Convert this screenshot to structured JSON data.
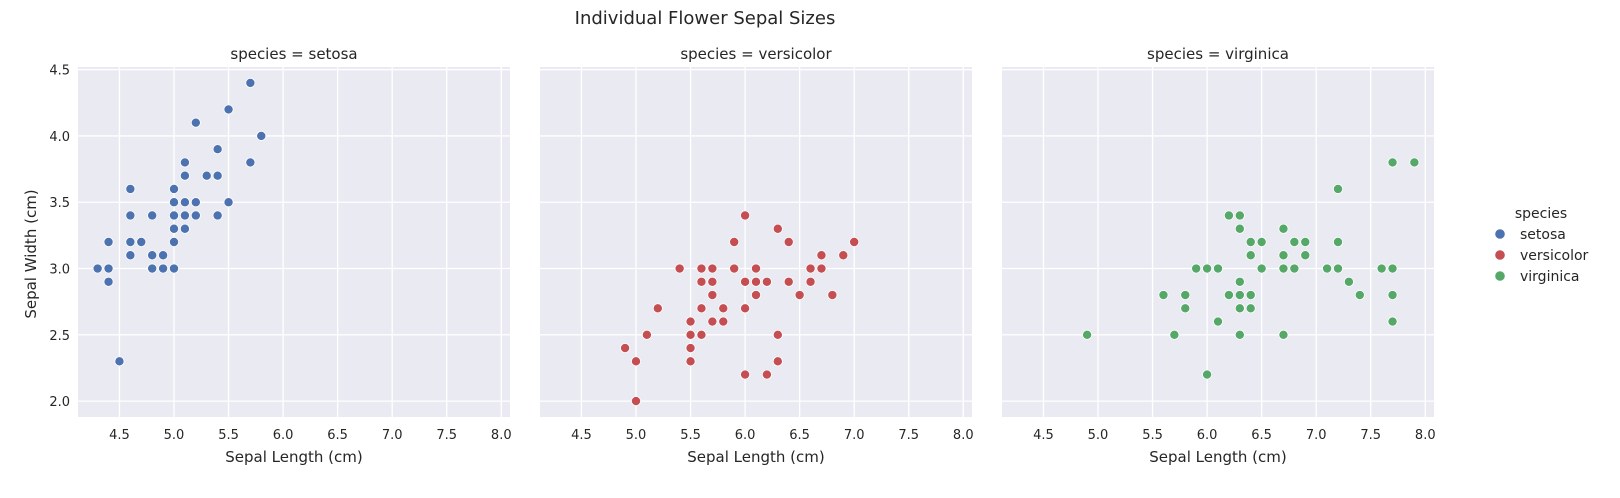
{
  "chart_data": {
    "type": "scatter",
    "title": "Individual Flower Sepal Sizes",
    "xlabel": "Sepal Length (cm)",
    "ylabel": "Sepal Width (cm)",
    "xlim": [
      4.12,
      8.08
    ],
    "ylim": [
      1.88,
      4.52
    ],
    "xticks": [
      4.5,
      5.0,
      5.5,
      6.0,
      6.5,
      7.0,
      7.5,
      8.0
    ],
    "yticks": [
      2.0,
      2.5,
      3.0,
      3.5,
      4.0,
      4.5
    ],
    "x_tick_labels": [
      "4.5",
      "5.0",
      "5.5",
      "6.0",
      "6.5",
      "7.0",
      "7.5",
      "8.0"
    ],
    "y_tick_labels": [
      "2.0",
      "2.5",
      "3.0",
      "3.5",
      "4.0",
      "4.5"
    ],
    "grid": true,
    "legend": {
      "title": "species",
      "placement": "right"
    },
    "panels": [
      {
        "title": "species = setosa",
        "name": "setosa",
        "color": "#4c72b0",
        "points": [
          [
            4.3,
            3.0
          ],
          [
            4.4,
            2.9
          ],
          [
            4.4,
            3.0
          ],
          [
            4.4,
            3.2
          ],
          [
            4.5,
            2.3
          ],
          [
            4.6,
            3.1
          ],
          [
            4.6,
            3.2
          ],
          [
            4.6,
            3.4
          ],
          [
            4.6,
            3.6
          ],
          [
            4.7,
            3.2
          ],
          [
            4.8,
            3.0
          ],
          [
            4.8,
            3.1
          ],
          [
            4.8,
            3.4
          ],
          [
            4.9,
            3.0
          ],
          [
            4.9,
            3.1
          ],
          [
            5.0,
            3.0
          ],
          [
            5.0,
            3.2
          ],
          [
            5.0,
            3.3
          ],
          [
            5.0,
            3.4
          ],
          [
            5.0,
            3.5
          ],
          [
            5.0,
            3.6
          ],
          [
            5.1,
            3.3
          ],
          [
            5.1,
            3.4
          ],
          [
            5.1,
            3.5
          ],
          [
            5.1,
            3.7
          ],
          [
            5.1,
            3.8
          ],
          [
            5.2,
            3.4
          ],
          [
            5.2,
            3.5
          ],
          [
            5.2,
            4.1
          ],
          [
            5.3,
            3.7
          ],
          [
            5.4,
            3.4
          ],
          [
            5.4,
            3.7
          ],
          [
            5.4,
            3.9
          ],
          [
            5.5,
            3.5
          ],
          [
            5.5,
            4.2
          ],
          [
            5.7,
            3.8
          ],
          [
            5.7,
            4.4
          ],
          [
            5.8,
            4.0
          ]
        ]
      },
      {
        "title": "species = versicolor",
        "name": "versicolor",
        "color": "#c44e52",
        "points": [
          [
            4.9,
            2.4
          ],
          [
            5.0,
            2.0
          ],
          [
            5.0,
            2.3
          ],
          [
            5.1,
            2.5
          ],
          [
            5.2,
            2.7
          ],
          [
            5.4,
            3.0
          ],
          [
            5.5,
            2.3
          ],
          [
            5.5,
            2.4
          ],
          [
            5.5,
            2.5
          ],
          [
            5.5,
            2.6
          ],
          [
            5.6,
            2.5
          ],
          [
            5.6,
            2.7
          ],
          [
            5.6,
            2.9
          ],
          [
            5.6,
            3.0
          ],
          [
            5.7,
            2.6
          ],
          [
            5.7,
            2.8
          ],
          [
            5.7,
            2.9
          ],
          [
            5.7,
            3.0
          ],
          [
            5.8,
            2.6
          ],
          [
            5.8,
            2.7
          ],
          [
            5.9,
            3.0
          ],
          [
            5.9,
            3.2
          ],
          [
            6.0,
            2.2
          ],
          [
            6.0,
            2.7
          ],
          [
            6.0,
            2.9
          ],
          [
            6.0,
            3.4
          ],
          [
            6.1,
            2.8
          ],
          [
            6.1,
            2.9
          ],
          [
            6.1,
            3.0
          ],
          [
            6.2,
            2.2
          ],
          [
            6.2,
            2.9
          ],
          [
            6.3,
            2.3
          ],
          [
            6.3,
            2.5
          ],
          [
            6.3,
            3.3
          ],
          [
            6.4,
            2.9
          ],
          [
            6.4,
            3.2
          ],
          [
            6.5,
            2.8
          ],
          [
            6.6,
            2.9
          ],
          [
            6.6,
            3.0
          ],
          [
            6.7,
            3.0
          ],
          [
            6.7,
            3.1
          ],
          [
            6.8,
            2.8
          ],
          [
            6.9,
            3.1
          ],
          [
            7.0,
            3.2
          ]
        ]
      },
      {
        "title": "species = virginica",
        "name": "virginica",
        "color": "#55a868",
        "points": [
          [
            4.9,
            2.5
          ],
          [
            5.6,
            2.8
          ],
          [
            5.7,
            2.5
          ],
          [
            5.8,
            2.7
          ],
          [
            5.8,
            2.8
          ],
          [
            5.9,
            3.0
          ],
          [
            6.0,
            2.2
          ],
          [
            6.0,
            3.0
          ],
          [
            6.1,
            2.6
          ],
          [
            6.1,
            3.0
          ],
          [
            6.2,
            2.8
          ],
          [
            6.2,
            3.4
          ],
          [
            6.3,
            2.5
          ],
          [
            6.3,
            2.7
          ],
          [
            6.3,
            2.8
          ],
          [
            6.3,
            2.9
          ],
          [
            6.3,
            3.3
          ],
          [
            6.3,
            3.4
          ],
          [
            6.4,
            2.7
          ],
          [
            6.4,
            2.8
          ],
          [
            6.4,
            3.1
          ],
          [
            6.4,
            3.2
          ],
          [
            6.5,
            3.0
          ],
          [
            6.5,
            3.2
          ],
          [
            6.7,
            2.5
          ],
          [
            6.7,
            3.0
          ],
          [
            6.7,
            3.1
          ],
          [
            6.7,
            3.3
          ],
          [
            6.8,
            3.0
          ],
          [
            6.8,
            3.2
          ],
          [
            6.9,
            3.1
          ],
          [
            6.9,
            3.2
          ],
          [
            7.1,
            3.0
          ],
          [
            7.2,
            3.0
          ],
          [
            7.2,
            3.2
          ],
          [
            7.2,
            3.6
          ],
          [
            7.3,
            2.9
          ],
          [
            7.4,
            2.8
          ],
          [
            7.6,
            3.0
          ],
          [
            7.7,
            2.6
          ],
          [
            7.7,
            2.8
          ],
          [
            7.7,
            3.0
          ],
          [
            7.7,
            3.8
          ],
          [
            7.9,
            3.8
          ]
        ]
      }
    ]
  }
}
